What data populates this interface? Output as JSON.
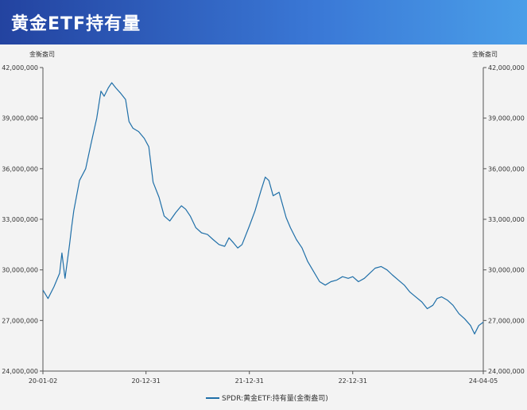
{
  "header": {
    "title": "黄金ETF持有量"
  },
  "chart_data": {
    "type": "line",
    "title": "",
    "unit_left": "金衡盎司",
    "unit_right": "金衡盎司",
    "ylim": [
      24000000,
      42000000
    ],
    "y_ticks": [
      24000000,
      27000000,
      30000000,
      33000000,
      36000000,
      39000000,
      42000000
    ],
    "y_tick_labels": [
      "24,000,000",
      "27,000,000",
      "30,000,000",
      "33,000,000",
      "36,000,000",
      "39,000,000",
      "42,000,000"
    ],
    "x_ticks": [
      "2020-01-02",
      "2020-12-31",
      "2021-12-31",
      "2022-12-31",
      "2024-04-05"
    ],
    "x_tick_labels": [
      "20-01-02",
      "20-12-31",
      "21-12-31",
      "22-12-31",
      "24-04-05"
    ],
    "grid": false,
    "legend": "bottom-center",
    "color": "#1f6fa8",
    "series": [
      {
        "name": "SPDR:黄金ETF:持有量(金衡盎司)",
        "x": [
          "2020-01-02",
          "2020-01-20",
          "2020-02-10",
          "2020-03-01",
          "2020-03-09",
          "2020-03-20",
          "2020-04-05",
          "2020-04-12",
          "2020-04-20",
          "2020-05-10",
          "2020-06-01",
          "2020-06-20",
          "2020-07-10",
          "2020-07-25",
          "2020-08-05",
          "2020-08-20",
          "2020-09-01",
          "2020-09-15",
          "2020-10-01",
          "2020-10-20",
          "2020-11-01",
          "2020-11-15",
          "2020-12-05",
          "2020-12-25",
          "2021-01-10",
          "2021-01-25",
          "2021-02-15",
          "2021-03-05",
          "2021-03-25",
          "2021-04-15",
          "2021-05-05",
          "2021-05-20",
          "2021-06-05",
          "2021-06-25",
          "2021-07-15",
          "2021-08-05",
          "2021-08-25",
          "2021-09-15",
          "2021-10-05",
          "2021-10-20",
          "2021-11-05",
          "2021-11-20",
          "2021-12-05",
          "2021-12-31",
          "2022-01-20",
          "2022-02-10",
          "2022-02-25",
          "2022-03-10",
          "2022-03-25",
          "2022-04-15",
          "2022-04-25",
          "2022-05-10",
          "2022-05-25",
          "2022-06-15",
          "2022-07-05",
          "2022-07-25",
          "2022-08-15",
          "2022-09-05",
          "2022-09-25",
          "2022-10-15",
          "2022-11-05",
          "2022-11-25",
          "2022-12-15",
          "2022-12-31",
          "2023-01-20",
          "2023-02-10",
          "2023-03-01",
          "2023-03-20",
          "2023-04-10",
          "2023-05-01",
          "2023-05-20",
          "2023-06-10",
          "2023-07-01",
          "2023-07-20",
          "2023-08-10",
          "2023-09-01",
          "2023-09-20",
          "2023-10-10",
          "2023-10-25",
          "2023-11-10",
          "2023-12-01",
          "2023-12-20",
          "2024-01-10",
          "2024-01-30",
          "2024-02-20",
          "2024-03-05",
          "2024-03-20",
          "2024-04-05"
        ],
        "values": [
          28800000,
          28300000,
          29000000,
          29800000,
          31000000,
          29500000,
          31500000,
          32500000,
          33500000,
          35300000,
          36000000,
          37500000,
          39000000,
          40600000,
          40300000,
          40800000,
          41100000,
          40800000,
          40500000,
          40100000,
          38800000,
          38400000,
          38200000,
          37800000,
          37300000,
          35200000,
          34300000,
          33200000,
          32900000,
          33400000,
          33800000,
          33600000,
          33200000,
          32500000,
          32200000,
          32100000,
          31800000,
          31500000,
          31400000,
          31900000,
          31600000,
          31300000,
          31500000,
          32600000,
          33500000,
          34700000,
          35500000,
          35300000,
          34400000,
          34600000,
          34000000,
          33100000,
          32500000,
          31800000,
          31300000,
          30500000,
          29900000,
          29300000,
          29100000,
          29300000,
          29400000,
          29600000,
          29500000,
          29600000,
          29300000,
          29500000,
          29800000,
          30100000,
          30200000,
          30000000,
          29700000,
          29400000,
          29100000,
          28700000,
          28400000,
          28100000,
          27700000,
          27900000,
          28300000,
          28400000,
          28200000,
          27900000,
          27400000,
          27100000,
          26700000,
          26200000,
          26700000,
          26900000
        ]
      }
    ]
  }
}
